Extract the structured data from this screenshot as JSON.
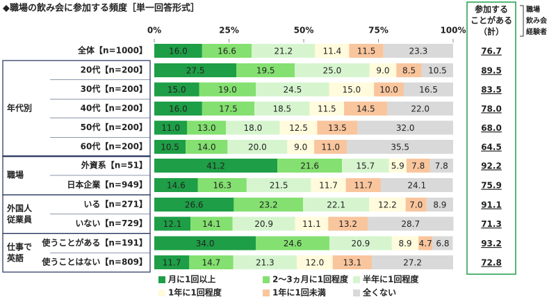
{
  "chart_data": {
    "type": "stacked_bar_horizontal",
    "title": "◆職場の飲み会に参加する頻度［単一回答形式］",
    "categories": [
      "全体【n=1000】",
      "20代【n=200】",
      "30代【n=200】",
      "40代【n=200】",
      "50代【n=200】",
      "60代【n=200】",
      "外資系【n=51】",
      "日本企業【n=949】",
      "いる【n=271】",
      "いない【n=729】",
      "使うことがある【n=191】",
      "使うことはない【n=809】"
    ],
    "groups": [
      [
        "年代別"
      ],
      [
        "職場"
      ],
      [
        "外国人",
        "従業員"
      ],
      [
        "仕事で",
        "英語"
      ]
    ],
    "xlim": [
      0,
      100
    ],
    "xticks": [
      {
        "value": 0,
        "label": "0%"
      },
      {
        "value": 25,
        "label": "25%"
      },
      {
        "value": 50,
        "label": "50%"
      },
      {
        "value": 75,
        "label": "75%"
      },
      {
        "value": 100,
        "label": "100%"
      }
    ],
    "legend": "bottom",
    "series": [
      {
        "name": "月に1回以上",
        "color": "#1e9e46",
        "values": [
          16,
          27.5,
          15,
          16,
          11,
          10.5,
          41.2,
          14.6,
          26.6,
          12.1,
          34,
          11.7
        ],
        "value_labels": [
          "16.0",
          "27.5",
          "15.0",
          "16.0",
          "11.0",
          "10.5",
          "41.2",
          "14.6",
          "26.6",
          "12.1",
          "34.0",
          "11.7"
        ]
      },
      {
        "name": "2～3ヵ月に1回程度",
        "color": "#84e070",
        "values": [
          16.6,
          19.5,
          19,
          17.5,
          13,
          14,
          21.6,
          16.3,
          23.2,
          14.1,
          24.6,
          14.7
        ],
        "value_labels": [
          "16.6",
          "19.5",
          "19.0",
          "17.5",
          "13.0",
          "14.0",
          "21.6",
          "16.3",
          "23.2",
          "14.1",
          "24.6",
          "14.7"
        ]
      },
      {
        "name": "半年に1回程度",
        "color": "#d6f5cf",
        "values": [
          21.2,
          25,
          24.5,
          18.5,
          18,
          20,
          15.7,
          21.5,
          22.1,
          20.9,
          20.9,
          21.3
        ],
        "value_labels": [
          "21.2",
          "25.0",
          "24.5",
          "18.5",
          "18.0",
          "20.0",
          "15.7",
          "21.5",
          "22.1",
          "20.9",
          "20.9",
          "21.3"
        ]
      },
      {
        "name": "1年に1回程度",
        "color": "#fffbdc",
        "values": [
          11.4,
          9,
          15,
          11.5,
          12.5,
          9,
          5.9,
          11.7,
          12.2,
          11.1,
          8.9,
          12
        ],
        "value_labels": [
          "11.4",
          "9.0",
          "15.0",
          "11.5",
          "12.5",
          "9.0",
          "5.9",
          "11.7",
          "12.2",
          "11.1",
          "8.9",
          "12.0"
        ]
      },
      {
        "name": "1年に1回未満",
        "color": "#f9c59d",
        "values": [
          11.5,
          8.5,
          10,
          14.5,
          13.5,
          11,
          7.8,
          11.7,
          7,
          13.2,
          4.7,
          13.1
        ],
        "value_labels": [
          "11.5",
          "8.5",
          "10.0",
          "14.5",
          "13.5",
          "11.0",
          "7.8",
          "11.7",
          "7.0",
          "13.2",
          "4.7",
          "13.1"
        ]
      },
      {
        "name": "全くない",
        "color": "#d9d9d9",
        "values": [
          23.3,
          10.5,
          16.5,
          22,
          32,
          35.5,
          7.8,
          24.1,
          8.9,
          28.7,
          6.8,
          27.2
        ],
        "value_labels": [
          "23.3",
          "10.5",
          "16.5",
          "22.0",
          "32.0",
          "35.5",
          "7.8",
          "24.1",
          "8.9",
          "28.7",
          "6.8",
          "27.2"
        ]
      }
    ],
    "totals": {
      "header": [
        "参加する",
        "ことがある",
        "（計）"
      ],
      "values": [
        76.7,
        89.5,
        83.5,
        78,
        68,
        64.5,
        92.2,
        75.9,
        91.1,
        71.3,
        93.2,
        72.8
      ],
      "value_labels": [
        "76.7",
        "89.5",
        "83.5",
        "78.0",
        "68.0",
        "64.5",
        "92.2",
        "75.9",
        "91.1",
        "71.3",
        "93.2",
        "72.8"
      ]
    },
    "note": [
      "職場",
      "飲み会",
      "経験者"
    ]
  }
}
